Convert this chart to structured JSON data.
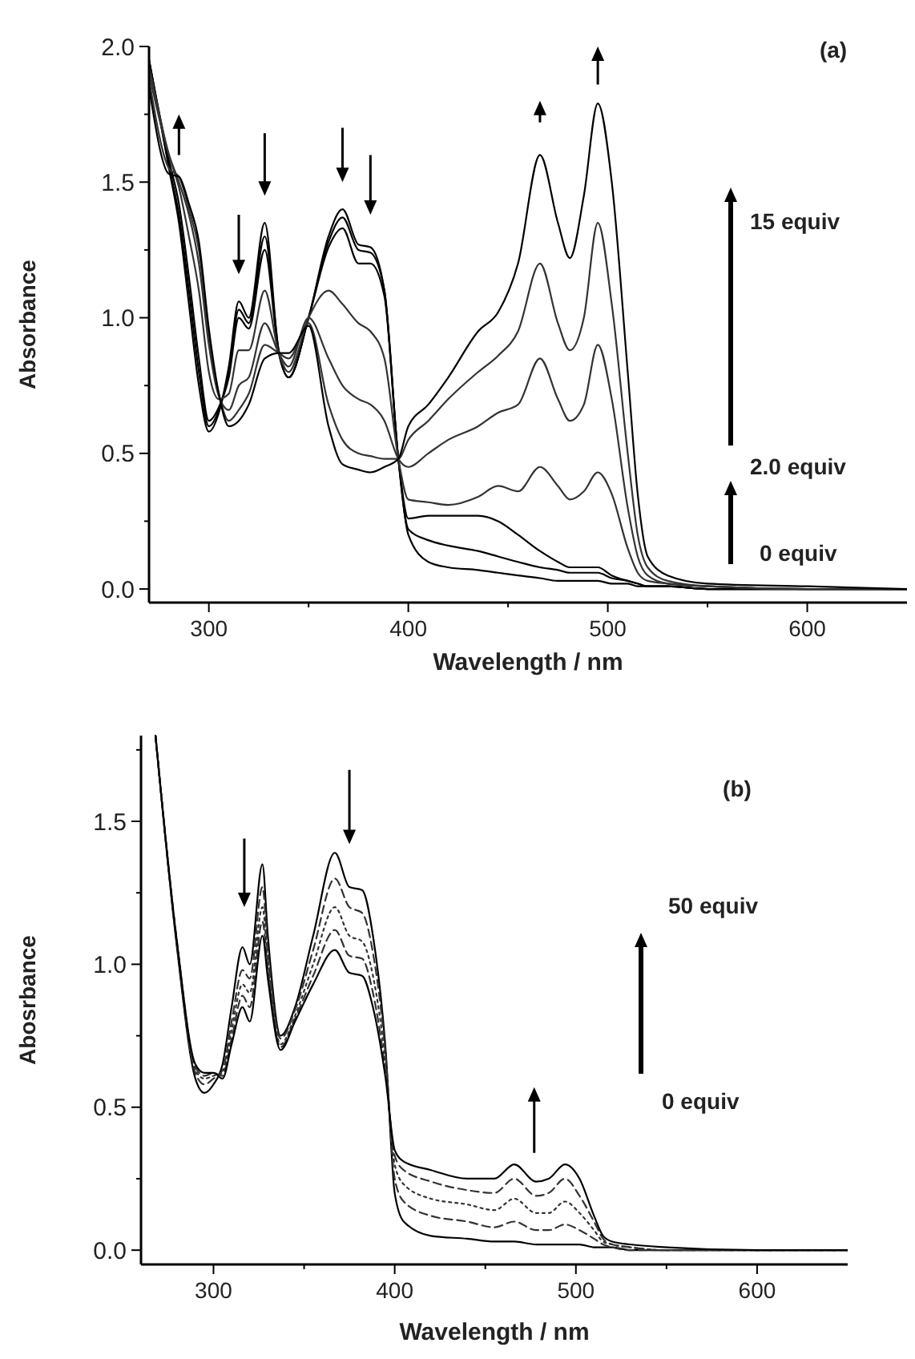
{
  "chart_data": [
    {
      "type": "line",
      "title": "(a)",
      "xlabel": "Wavelength / nm",
      "ylabel": "Absorbance",
      "xlim": [
        270,
        650
      ],
      "ylim": [
        -0.05,
        2.0
      ],
      "xticks": [
        300,
        {
          "value": 350,
          "label": null
        },
        400,
        {
          "value": 450,
          "label": null
        },
        500,
        {
          "value": 550,
          "label": null
        },
        600
      ],
      "yticks": [
        {
          "value": 0,
          "label": "0.0"
        },
        {
          "value": 0.25,
          "label": null
        },
        {
          "value": 0.5,
          "label": "0.5"
        },
        {
          "value": 0.75,
          "label": null
        },
        {
          "value": 1,
          "label": "1.0"
        },
        {
          "value": 1.25,
          "label": null
        },
        {
          "value": 1.5,
          "label": "1.5"
        },
        {
          "value": 1.75,
          "label": null
        },
        {
          "value": 2,
          "label": "2.0"
        }
      ],
      "annotations": [
        "15 equiv",
        "2.0 equiv",
        "0 equiv"
      ],
      "x": [
        270,
        280,
        285,
        290,
        295,
        300,
        305,
        310,
        315,
        320,
        328,
        335,
        340,
        350,
        360,
        367,
        375,
        381,
        388,
        395,
        400,
        410,
        420,
        435,
        445,
        455,
        466,
        475,
        481,
        488,
        495,
        502,
        510,
        515,
        520,
        530,
        550,
        600,
        650
      ],
      "series": [
        {
          "color": "#000000",
          "line_style": "solid",
          "values": [
            1.95,
            1.55,
            1.35,
            1.05,
            0.75,
            0.58,
            0.65,
            0.82,
            1.06,
            1.0,
            1.35,
            0.88,
            0.78,
            1.0,
            1.3,
            1.4,
            1.27,
            1.26,
            1.1,
            0.48,
            0.2,
            0.1,
            0.08,
            0.07,
            0.06,
            0.05,
            0.04,
            0.03,
            0.03,
            0.03,
            0.03,
            0.02,
            0.02,
            0.01,
            0.01,
            0.01,
            0.0,
            0.0,
            0.0
          ]
        },
        {
          "color": "#000000",
          "line_style": "solid",
          "values": [
            1.95,
            1.56,
            1.38,
            1.1,
            0.8,
            0.6,
            0.66,
            0.8,
            1.03,
            0.98,
            1.3,
            0.88,
            0.78,
            1.0,
            1.28,
            1.37,
            1.25,
            1.24,
            1.1,
            0.48,
            0.22,
            0.18,
            0.16,
            0.14,
            0.12,
            0.1,
            0.08,
            0.07,
            0.06,
            0.06,
            0.06,
            0.04,
            0.03,
            0.02,
            0.01,
            0.01,
            0.0,
            0.0,
            0.0
          ]
        },
        {
          "color": "#000000",
          "line_style": "solid",
          "values": [
            1.95,
            1.58,
            1.42,
            1.15,
            0.85,
            0.62,
            0.67,
            0.78,
            1.0,
            0.96,
            1.25,
            0.87,
            0.78,
            1.0,
            1.26,
            1.33,
            1.2,
            1.2,
            1.08,
            0.48,
            0.26,
            0.27,
            0.27,
            0.27,
            0.25,
            0.2,
            0.14,
            0.1,
            0.08,
            0.08,
            0.08,
            0.05,
            0.03,
            0.02,
            0.01,
            0.01,
            0.0,
            0.0,
            0.0
          ]
        },
        {
          "color": "#333333",
          "line_style": "solid",
          "values": [
            1.93,
            1.6,
            1.48,
            1.3,
            1.1,
            0.8,
            0.7,
            0.72,
            0.88,
            0.88,
            1.1,
            0.87,
            0.8,
            1.0,
            1.1,
            1.05,
            0.98,
            0.95,
            0.85,
            0.48,
            0.33,
            0.32,
            0.31,
            0.34,
            0.38,
            0.36,
            0.45,
            0.38,
            0.33,
            0.36,
            0.43,
            0.35,
            0.15,
            0.06,
            0.03,
            0.02,
            0.01,
            0.0,
            0.0
          ]
        },
        {
          "color": "#333333",
          "line_style": "solid",
          "values": [
            1.9,
            1.6,
            1.5,
            1.38,
            1.2,
            0.9,
            0.71,
            0.66,
            0.75,
            0.78,
            0.98,
            0.87,
            0.82,
            1.0,
            0.85,
            0.75,
            0.7,
            0.68,
            0.62,
            0.48,
            0.45,
            0.5,
            0.55,
            0.6,
            0.65,
            0.68,
            0.85,
            0.7,
            0.62,
            0.68,
            0.9,
            0.7,
            0.3,
            0.12,
            0.05,
            0.02,
            0.01,
            0.0,
            0.0
          ]
        },
        {
          "color": "#333333",
          "line_style": "solid",
          "values": [
            1.88,
            1.55,
            1.52,
            1.4,
            1.25,
            0.93,
            0.72,
            0.62,
            0.66,
            0.72,
            0.9,
            0.87,
            0.85,
            0.98,
            0.68,
            0.55,
            0.5,
            0.49,
            0.48,
            0.48,
            0.55,
            0.62,
            0.7,
            0.8,
            0.86,
            0.95,
            1.2,
            0.98,
            0.88,
            1.0,
            1.35,
            1.05,
            0.5,
            0.2,
            0.08,
            0.03,
            0.01,
            0.0,
            0.0
          ]
        },
        {
          "color": "#000000",
          "line_style": "solid",
          "values": [
            1.85,
            1.53,
            1.52,
            1.42,
            1.28,
            0.96,
            0.72,
            0.6,
            0.62,
            0.68,
            0.85,
            0.87,
            0.87,
            0.97,
            0.6,
            0.46,
            0.44,
            0.43,
            0.45,
            0.48,
            0.6,
            0.68,
            0.78,
            0.95,
            1.02,
            1.2,
            1.6,
            1.35,
            1.22,
            1.45,
            1.79,
            1.5,
            0.8,
            0.35,
            0.12,
            0.05,
            0.02,
            0.01,
            0.0
          ]
        }
      ]
    },
    {
      "type": "line",
      "title": "(b)",
      "xlabel": "Wavelength / nm",
      "ylabel": "Abosrbance",
      "xlim": [
        260,
        650
      ],
      "ylim": [
        -0.05,
        1.8
      ],
      "xticks": [
        300,
        {
          "value": 350,
          "label": null
        },
        400,
        {
          "value": 450,
          "label": null
        },
        500,
        {
          "value": 550,
          "label": null
        },
        600
      ],
      "yticks": [
        {
          "value": 0,
          "label": "0.0"
        },
        {
          "value": 0.25,
          "label": null
        },
        {
          "value": 0.5,
          "label": "0.5"
        },
        {
          "value": 0.75,
          "label": null
        },
        {
          "value": 1,
          "label": "1.0"
        },
        {
          "value": 1.25,
          "label": null
        },
        {
          "value": 1.5,
          "label": "1.5"
        },
        {
          "value": 1.75,
          "label": null
        }
      ],
      "annotations": [
        "50 equiv",
        "0 equiv"
      ],
      "x": [
        268,
        280,
        290,
        295,
        300,
        305,
        310,
        316,
        320,
        327,
        330,
        337,
        345,
        355,
        367,
        375,
        382,
        388,
        395,
        400,
        405,
        420,
        440,
        455,
        466,
        478,
        485,
        494,
        502,
        510,
        515,
        520,
        530,
        550,
        600,
        650
      ],
      "series": [
        {
          "color": "#000000",
          "line_style": "solid",
          "values": [
            1.8,
            1.05,
            0.6,
            0.55,
            0.58,
            0.65,
            0.85,
            1.06,
            1.0,
            1.35,
            1.1,
            0.75,
            0.85,
            1.1,
            1.39,
            1.27,
            1.26,
            1.1,
            0.7,
            0.2,
            0.1,
            0.05,
            0.04,
            0.03,
            0.03,
            0.02,
            0.02,
            0.02,
            0.02,
            0.01,
            0.01,
            0.01,
            0.0,
            0.0,
            0.0,
            0.0
          ]
        },
        {
          "color": "#333333",
          "line_style": "dashed",
          "values": [
            1.8,
            1.06,
            0.62,
            0.58,
            0.6,
            0.63,
            0.8,
            0.98,
            0.95,
            1.27,
            1.05,
            0.74,
            0.84,
            1.05,
            1.3,
            1.2,
            1.18,
            1.04,
            0.68,
            0.25,
            0.17,
            0.12,
            0.1,
            0.08,
            0.1,
            0.07,
            0.07,
            0.09,
            0.07,
            0.04,
            0.02,
            0.01,
            0.0,
            0.0,
            0.0,
            0.0
          ]
        },
        {
          "color": "#333333",
          "line_style": "dotted",
          "values": [
            1.8,
            1.06,
            0.63,
            0.6,
            0.61,
            0.62,
            0.77,
            0.93,
            0.9,
            1.2,
            1.01,
            0.72,
            0.82,
            1.0,
            1.2,
            1.1,
            1.08,
            0.96,
            0.65,
            0.3,
            0.23,
            0.18,
            0.16,
            0.14,
            0.18,
            0.13,
            0.13,
            0.17,
            0.13,
            0.07,
            0.03,
            0.02,
            0.01,
            0.0,
            0.0,
            0.0
          ]
        },
        {
          "color": "#333333",
          "line_style": "dashed",
          "values": [
            1.8,
            1.07,
            0.64,
            0.61,
            0.62,
            0.61,
            0.74,
            0.89,
            0.85,
            1.15,
            0.98,
            0.71,
            0.81,
            0.96,
            1.12,
            1.03,
            1.02,
            0.9,
            0.62,
            0.33,
            0.28,
            0.24,
            0.21,
            0.2,
            0.25,
            0.19,
            0.2,
            0.25,
            0.19,
            0.1,
            0.04,
            0.02,
            0.01,
            0.0,
            0.0,
            0.0
          ]
        },
        {
          "color": "#000000",
          "line_style": "solid",
          "values": [
            1.8,
            1.07,
            0.65,
            0.62,
            0.62,
            0.6,
            0.72,
            0.85,
            0.8,
            1.1,
            0.95,
            0.7,
            0.8,
            0.93,
            1.05,
            0.97,
            0.96,
            0.85,
            0.6,
            0.35,
            0.31,
            0.28,
            0.25,
            0.25,
            0.3,
            0.24,
            0.25,
            0.3,
            0.25,
            0.12,
            0.05,
            0.03,
            0.02,
            0.01,
            0.0,
            0.0
          ]
        }
      ]
    }
  ]
}
